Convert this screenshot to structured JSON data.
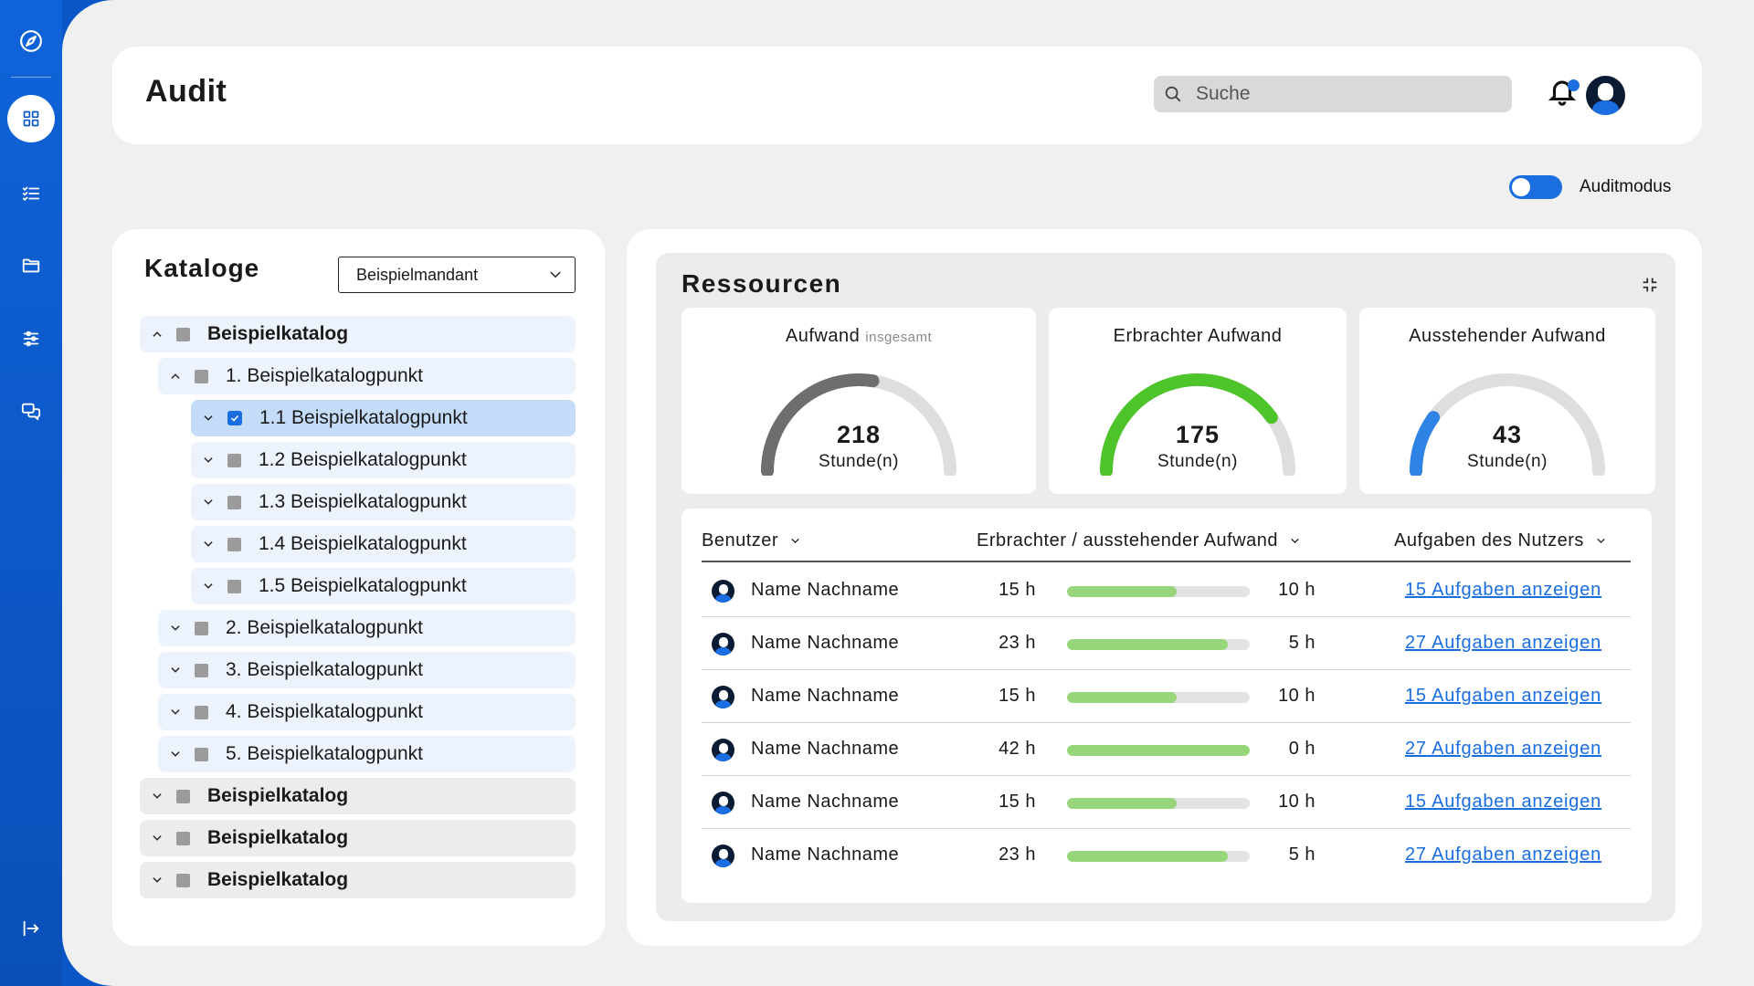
{
  "header": {
    "title": "Audit",
    "search_placeholder": "Suche"
  },
  "sidebar": {
    "items": [
      {
        "name": "compass-icon",
        "active": false
      },
      {
        "name": "dashboard-icon",
        "active": true
      },
      {
        "name": "checklist-icon",
        "active": false
      },
      {
        "name": "folder-icon",
        "active": false
      },
      {
        "name": "sliders-icon",
        "active": false
      },
      {
        "name": "chat-icon",
        "active": false
      },
      {
        "name": "logout-icon",
        "active": false
      }
    ]
  },
  "audit_toggle": {
    "label": "Auditmodus",
    "on": true
  },
  "catalogs": {
    "title": "Kataloge",
    "tenant_select": "Beispielmandant",
    "tree": [
      {
        "label": "Beispielkatalog",
        "level": 0,
        "expanded": true
      },
      {
        "label": "1. Beispielkatalogpunkt",
        "level": 1,
        "expanded": true
      },
      {
        "label": "1.1 Beispielkatalogpunkt",
        "level": 2,
        "selected": true,
        "checked": true
      },
      {
        "label": "1.2 Beispielkatalogpunkt",
        "level": 2
      },
      {
        "label": "1.3 Beispielkatalogpunkt",
        "level": 2
      },
      {
        "label": "1.4 Beispielkatalogpunkt",
        "level": 2
      },
      {
        "label": "1.5 Beispielkatalogpunkt",
        "level": 2
      },
      {
        "label": "2. Beispielkatalogpunkt",
        "level": 1
      },
      {
        "label": "3. Beispielkatalogpunkt",
        "level": 1
      },
      {
        "label": "4. Beispielkatalogpunkt",
        "level": 1
      },
      {
        "label": "5. Beispielkatalogpunkt",
        "level": 1
      },
      {
        "label": "Beispielkatalog",
        "level": 0
      },
      {
        "label": "Beispielkatalog",
        "level": 0
      },
      {
        "label": "Beispielkatalog",
        "level": 0
      }
    ]
  },
  "resources": {
    "title": "Ressourcen",
    "cards": [
      {
        "title": "Aufwand",
        "subtitle": "insgesamt",
        "value": "218",
        "unit": "Stunde(n)",
        "fraction": 0.55,
        "color": "#6e6e6e"
      },
      {
        "title": "Erbrachter Aufwand",
        "subtitle": "",
        "value": "175",
        "unit": "Stunde(n)",
        "fraction": 0.8,
        "color": "#4cc42a"
      },
      {
        "title": "Ausstehender Aufwand",
        "subtitle": "",
        "value": "43",
        "unit": "Stunde(n)",
        "fraction": 0.2,
        "color": "#2f83e4"
      }
    ],
    "table": {
      "headers": [
        "Benutzer",
        "Erbrachter / ausstehender Aufwand",
        "Aufgaben des Nutzers"
      ],
      "rows": [
        {
          "name": "Name Nachname",
          "done": "15 h",
          "open": "10 h",
          "progress": 0.6,
          "link": "15 Aufgaben anzeigen"
        },
        {
          "name": "Name Nachname",
          "done": "23 h",
          "open": "5 h",
          "progress": 0.88,
          "link": "27 Aufgaben anzeigen"
        },
        {
          "name": "Name Nachname",
          "done": "15 h",
          "open": "10 h",
          "progress": 0.6,
          "link": "15 Aufgaben anzeigen"
        },
        {
          "name": "Name Nachname",
          "done": "42 h",
          "open": "0 h",
          "progress": 1.0,
          "link": "27 Aufgaben anzeigen"
        },
        {
          "name": "Name Nachname",
          "done": "15 h",
          "open": "10 h",
          "progress": 0.6,
          "link": "15 Aufgaben anzeigen"
        },
        {
          "name": "Name Nachname",
          "done": "23 h",
          "open": "5 h",
          "progress": 0.88,
          "link": "27 Aufgaben anzeigen"
        }
      ]
    }
  }
}
